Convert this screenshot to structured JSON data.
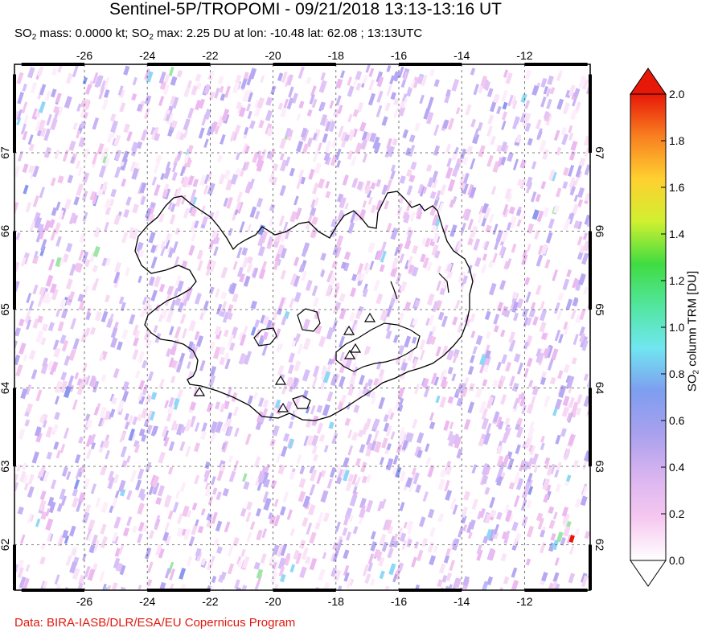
{
  "header": {
    "title": "Sentinel-5P/TROPOMI - 09/21/2018 13:13-13:16 UT",
    "subtitle_prefix": "SO",
    "subtitle_sub1": "2",
    "subtitle_mid": " mass: 0.0000 kt; SO",
    "subtitle_sub2": "2",
    "subtitle_suffix": " max: 2.25 DU at lon: -10.48 lat: 62.08 ; 13:13UTC"
  },
  "map": {
    "lon_range": [
      -28,
      -10
    ],
    "lat_range": [
      61,
      68
    ],
    "lon_ticks": [
      "-26",
      "-24",
      "-22",
      "-20",
      "-18",
      "-16",
      "-14",
      "-12"
    ],
    "lat_ticks": [
      "62",
      "63",
      "64",
      "65",
      "66",
      "67"
    ],
    "volcano_markers": 7,
    "max_point": {
      "lon": -10.48,
      "lat": 62.08
    }
  },
  "colorbar": {
    "title_prefix": "SO",
    "title_sub": "2",
    "title_suffix": " column TRM [DU]",
    "ticks": [
      "0.0",
      "0.2",
      "0.4",
      "0.6",
      "0.8",
      "1.0",
      "1.2",
      "1.4",
      "1.6",
      "1.8",
      "2.0"
    ],
    "min": 0.0,
    "max": 2.0,
    "colors": [
      "#ffffff",
      "#f6c8f0",
      "#d8b4f0",
      "#a8a0ee",
      "#7e9ef0",
      "#70e6f0",
      "#52e6a0",
      "#40dc40",
      "#d0f030",
      "#ffd030",
      "#f88020",
      "#e81808"
    ]
  },
  "footer": {
    "credit": "Data: BIRA-IASB/DLR/ESA/EU Copernicus Program"
  }
}
